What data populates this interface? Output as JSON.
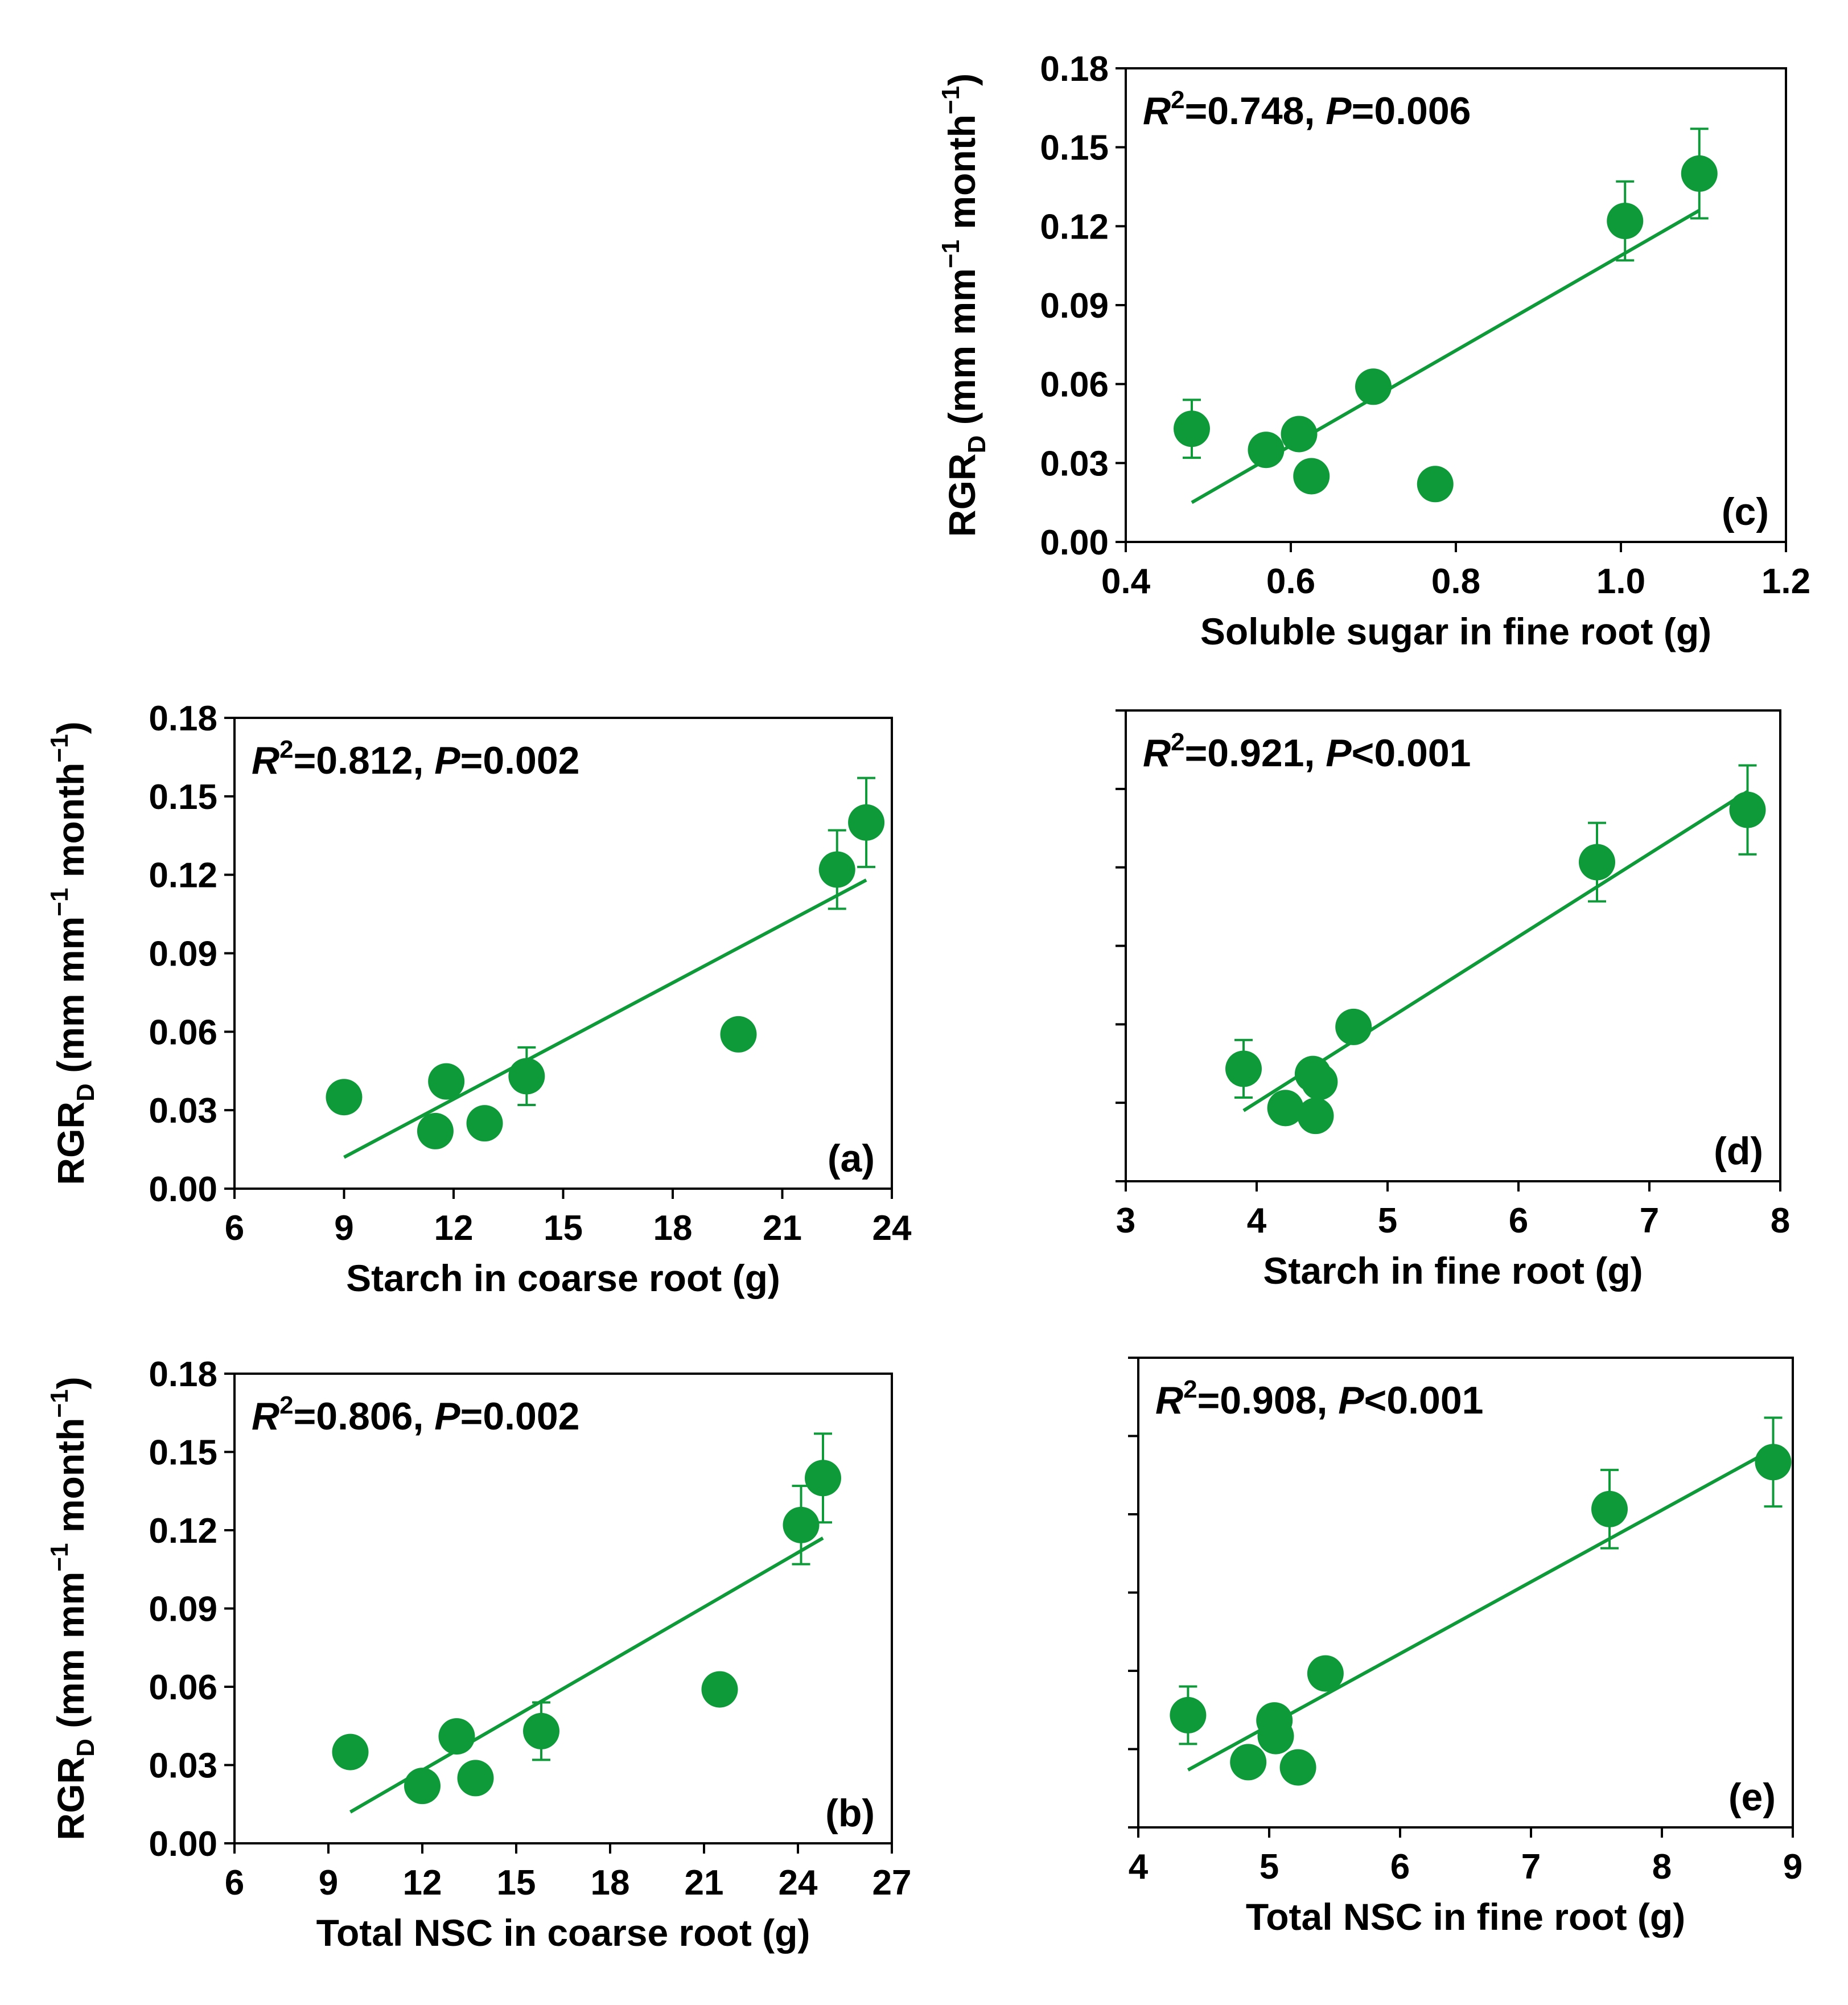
{
  "figure": {
    "marker_color": "#0f9a3a",
    "line_color": "#0f9a3a",
    "axis_color": "#000000"
  },
  "chart_data": [
    {
      "id": "c",
      "type": "scatter",
      "panel_label": "(c)",
      "xlabel": "Soluble sugar in fine root (g)",
      "ylabel": {
        "main": "RGR",
        "sub": "D",
        "unit_open": "(mm mm",
        "sup1": "−1",
        "unit_mid": "month",
        "sup2": "−1",
        "unit_close": ")"
      },
      "show_ytick_labels": true,
      "xlim": [
        0.4,
        1.2
      ],
      "ylim": [
        0.0,
        0.18
      ],
      "xticks": [
        0.4,
        0.6,
        0.8,
        1.0,
        1.2
      ],
      "xtick_labels": [
        "0.4",
        "0.6",
        "0.8",
        "1.0",
        "1.2"
      ],
      "yticks": [
        0.0,
        0.03,
        0.06,
        0.09,
        0.12,
        0.15,
        0.18
      ],
      "ytick_labels": [
        "0.00",
        "0.03",
        "0.06",
        "0.09",
        "0.12",
        "0.15",
        "0.18"
      ],
      "stats": {
        "r2_label": "R",
        "r2_sup": "2",
        "r2_value": "=0.748, ",
        "p_label": "P",
        "p_value": "=0.006"
      },
      "points": [
        {
          "x": 0.48,
          "y": 0.043,
          "err": 0.011
        },
        {
          "x": 0.57,
          "y": 0.035,
          "err": 0.005
        },
        {
          "x": 0.61,
          "y": 0.041,
          "err": 0.0
        },
        {
          "x": 0.625,
          "y": 0.025,
          "err": 0.003
        },
        {
          "x": 0.7,
          "y": 0.059,
          "err": 0.005
        },
        {
          "x": 0.775,
          "y": 0.022,
          "err": 0.0
        },
        {
          "x": 1.005,
          "y": 0.122,
          "err": 0.015
        },
        {
          "x": 1.095,
          "y": 0.14,
          "err": 0.017
        }
      ],
      "fit": {
        "x": [
          0.48,
          1.095
        ],
        "y": [
          0.015,
          0.126
        ]
      }
    },
    {
      "id": "a",
      "type": "scatter",
      "panel_label": "(a)",
      "xlabel": "Starch in coarse root (g)",
      "ylabel": {
        "main": "RGR",
        "sub": "D",
        "unit_open": "(mm mm",
        "sup1": "−1",
        "unit_mid": "month",
        "sup2": "−1",
        "unit_close": ")"
      },
      "show_ytick_labels": true,
      "xlim": [
        6,
        24
      ],
      "ylim": [
        0.0,
        0.18
      ],
      "xticks": [
        6,
        9,
        12,
        15,
        18,
        21,
        24
      ],
      "xtick_labels": [
        "6",
        "9",
        "12",
        "15",
        "18",
        "21",
        "24"
      ],
      "yticks": [
        0.0,
        0.03,
        0.06,
        0.09,
        0.12,
        0.15,
        0.18
      ],
      "ytick_labels": [
        "0.00",
        "0.03",
        "0.06",
        "0.09",
        "0.12",
        "0.15",
        "0.18"
      ],
      "stats": {
        "r2_label": "R",
        "r2_sup": "2",
        "r2_value": "=0.812, ",
        "p_label": "P",
        "p_value": "=0.002"
      },
      "points": [
        {
          "x": 9.0,
          "y": 0.035,
          "err": 0.005
        },
        {
          "x": 11.5,
          "y": 0.022,
          "err": 0.0
        },
        {
          "x": 11.8,
          "y": 0.041,
          "err": 0.0
        },
        {
          "x": 12.85,
          "y": 0.025,
          "err": 0.003
        },
        {
          "x": 14.0,
          "y": 0.043,
          "err": 0.011
        },
        {
          "x": 19.8,
          "y": 0.059,
          "err": 0.005
        },
        {
          "x": 22.5,
          "y": 0.122,
          "err": 0.015
        },
        {
          "x": 23.3,
          "y": 0.14,
          "err": 0.017
        }
      ],
      "fit": {
        "x": [
          9.0,
          23.3
        ],
        "y": [
          0.012,
          0.118
        ]
      }
    },
    {
      "id": "d",
      "type": "scatter",
      "panel_label": "(d)",
      "xlabel": "Starch in fine root (g)",
      "ylabel": null,
      "show_ytick_labels": false,
      "xlim": [
        3,
        8
      ],
      "ylim": [
        0.0,
        0.18
      ],
      "xticks": [
        3,
        4,
        5,
        6,
        7,
        8
      ],
      "xtick_labels": [
        "3",
        "4",
        "5",
        "6",
        "7",
        "8"
      ],
      "yticks": [
        0.0,
        0.03,
        0.06,
        0.09,
        0.12,
        0.15,
        0.18
      ],
      "ytick_labels": [],
      "stats": {
        "r2_label": "R",
        "r2_sup": "2",
        "r2_value": "=0.921, ",
        "p_label": "P",
        "p_value": "<0.001"
      },
      "points": [
        {
          "x": 3.9,
          "y": 0.043,
          "err": 0.011
        },
        {
          "x": 4.22,
          "y": 0.028,
          "err": 0.003
        },
        {
          "x": 4.43,
          "y": 0.041,
          "err": 0.0
        },
        {
          "x": 4.45,
          "y": 0.025,
          "err": 0.0
        },
        {
          "x": 4.48,
          "y": 0.038,
          "err": 0.003
        },
        {
          "x": 4.74,
          "y": 0.059,
          "err": 0.005
        },
        {
          "x": 6.6,
          "y": 0.122,
          "err": 0.015
        },
        {
          "x": 7.75,
          "y": 0.142,
          "err": 0.017
        }
      ],
      "fit": {
        "x": [
          3.9,
          7.75
        ],
        "y": [
          0.027,
          0.149
        ]
      }
    },
    {
      "id": "b",
      "type": "scatter",
      "panel_label": "(b)",
      "xlabel": "Total NSC in coarse root (g)",
      "ylabel": {
        "main": "RGR",
        "sub": "D",
        "unit_open": "(mm mm",
        "sup1": "−1",
        "unit_mid": "month",
        "sup2": "−1",
        "unit_close": ")"
      },
      "show_ytick_labels": true,
      "xlim": [
        6,
        27
      ],
      "ylim": [
        0.0,
        0.18
      ],
      "xticks": [
        6,
        9,
        12,
        15,
        18,
        21,
        24,
        27
      ],
      "xtick_labels": [
        "6",
        "9",
        "12",
        "15",
        "18",
        "21",
        "24",
        "27"
      ],
      "yticks": [
        0.0,
        0.03,
        0.06,
        0.09,
        0.12,
        0.15,
        0.18
      ],
      "ytick_labels": [
        "0.00",
        "0.03",
        "0.06",
        "0.09",
        "0.12",
        "0.15",
        "0.18"
      ],
      "stats": {
        "r2_label": "R",
        "r2_sup": "2",
        "r2_value": "=0.806, ",
        "p_label": "P",
        "p_value": "=0.002"
      },
      "points": [
        {
          "x": 9.7,
          "y": 0.035,
          "err": 0.005
        },
        {
          "x": 12.0,
          "y": 0.022,
          "err": 0.0
        },
        {
          "x": 13.1,
          "y": 0.041,
          "err": 0.0
        },
        {
          "x": 13.7,
          "y": 0.025,
          "err": 0.003
        },
        {
          "x": 15.8,
          "y": 0.043,
          "err": 0.011
        },
        {
          "x": 21.5,
          "y": 0.059,
          "err": 0.005
        },
        {
          "x": 24.1,
          "y": 0.122,
          "err": 0.015
        },
        {
          "x": 24.8,
          "y": 0.14,
          "err": 0.017
        }
      ],
      "fit": {
        "x": [
          9.7,
          24.8
        ],
        "y": [
          0.012,
          0.117
        ]
      }
    },
    {
      "id": "e",
      "type": "scatter",
      "panel_label": "(e)",
      "xlabel": "Total NSC in fine root (g)",
      "ylabel": null,
      "show_ytick_labels": false,
      "xlim": [
        4,
        9
      ],
      "ylim": [
        0.0,
        0.18
      ],
      "xticks": [
        4,
        5,
        6,
        7,
        8,
        9
      ],
      "xtick_labels": [
        "4",
        "5",
        "6",
        "7",
        "8",
        "9"
      ],
      "yticks": [
        0.0,
        0.03,
        0.06,
        0.09,
        0.12,
        0.15,
        0.18
      ],
      "ytick_labels": [],
      "stats": {
        "r2_label": "R",
        "r2_sup": "2",
        "r2_value": "=0.908, ",
        "p_label": "P",
        "p_value": "<0.001"
      },
      "points": [
        {
          "x": 4.38,
          "y": 0.043,
          "err": 0.011
        },
        {
          "x": 4.84,
          "y": 0.025,
          "err": 0.003
        },
        {
          "x": 5.04,
          "y": 0.041,
          "err": 0.0
        },
        {
          "x": 5.05,
          "y": 0.035,
          "err": 0.003
        },
        {
          "x": 5.22,
          "y": 0.023,
          "err": 0.0
        },
        {
          "x": 5.43,
          "y": 0.059,
          "err": 0.005
        },
        {
          "x": 7.6,
          "y": 0.122,
          "err": 0.015
        },
        {
          "x": 8.85,
          "y": 0.14,
          "err": 0.017
        }
      ],
      "fit": {
        "x": [
          4.38,
          8.85
        ],
        "y": [
          0.022,
          0.145
        ]
      }
    }
  ]
}
